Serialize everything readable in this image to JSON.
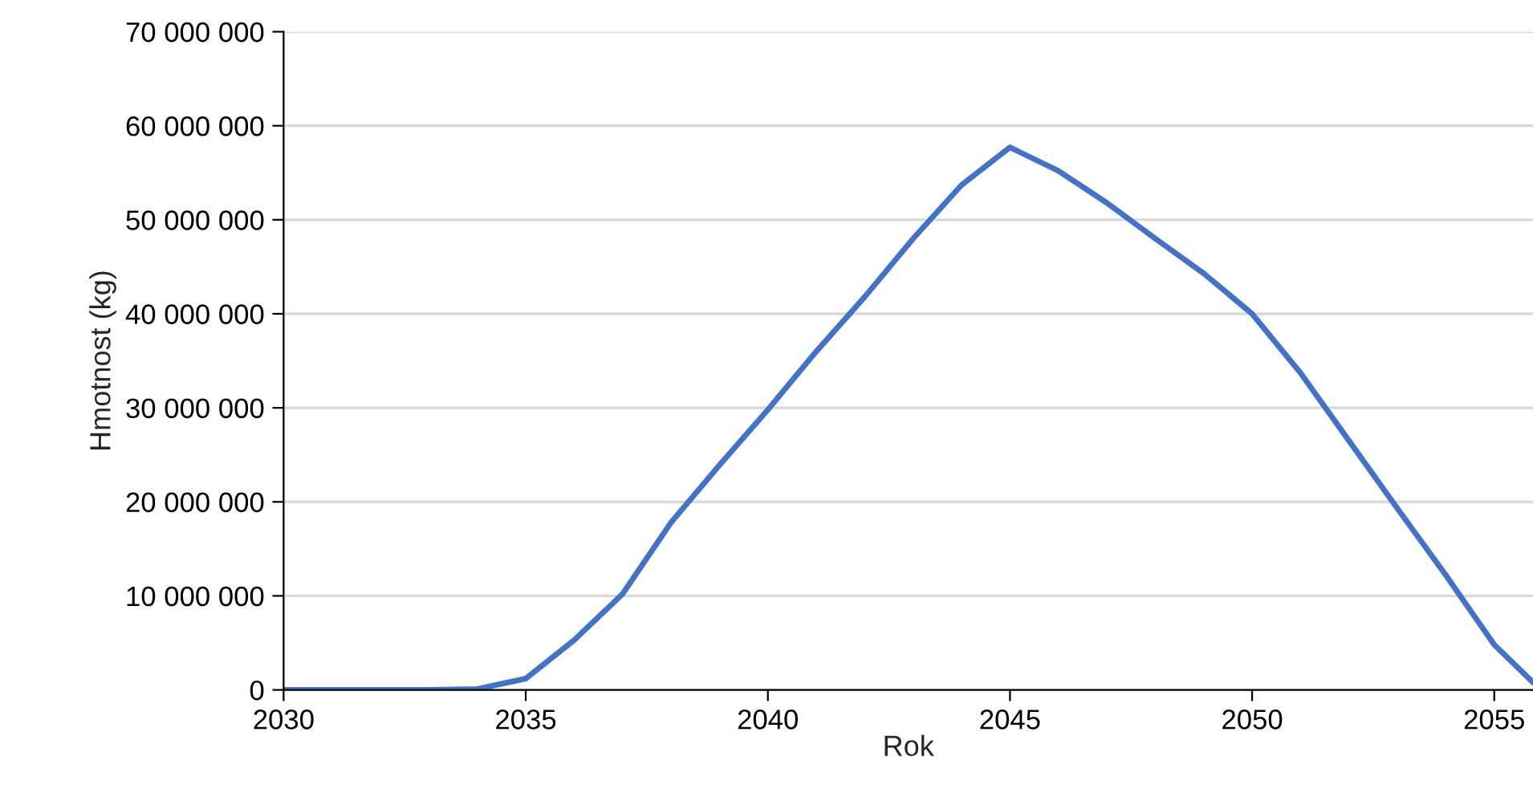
{
  "chart_data": {
    "type": "line",
    "xlabel": "Rok",
    "ylabel": "Hmotnost (kg)",
    "x": [
      2030,
      2031,
      2032,
      2033,
      2034,
      2035,
      2036,
      2037,
      2038,
      2039,
      2040,
      2041,
      2042,
      2043,
      2044,
      2045,
      2046,
      2047,
      2048,
      2049,
      2050,
      2051,
      2052,
      2053,
      2054,
      2055,
      2055.8
    ],
    "series": [
      {
        "color": "#4472c4",
        "values": [
          0,
          0,
          0,
          0,
          100000,
          1200000,
          5300000,
          10200000,
          17800000,
          23900000,
          29800000,
          36000000,
          41800000,
          48000000,
          53700000,
          57700000,
          55200000,
          51800000,
          48000000,
          44300000,
          40000000,
          33700000,
          26500000,
          19300000,
          12200000,
          4800000,
          800000
        ]
      }
    ],
    "xlim": [
      2030,
      2055.8
    ],
    "xticks": [
      2030,
      2035,
      2040,
      2045,
      2050,
      2055
    ],
    "ylim": [
      0,
      70000000
    ],
    "yticks": [
      {
        "value": 0,
        "label": "0"
      },
      {
        "value": 10000000,
        "label": "10 000 000"
      },
      {
        "value": 20000000,
        "label": "20 000 000"
      },
      {
        "value": 30000000,
        "label": "30 000 000"
      },
      {
        "value": 40000000,
        "label": "40 000 000"
      },
      {
        "value": 50000000,
        "label": "50 000 000"
      },
      {
        "value": 60000000,
        "label": "60 000 000"
      },
      {
        "value": 70000000,
        "label": "70 000 000"
      }
    ],
    "grid": "y",
    "line_style": "solid"
  }
}
